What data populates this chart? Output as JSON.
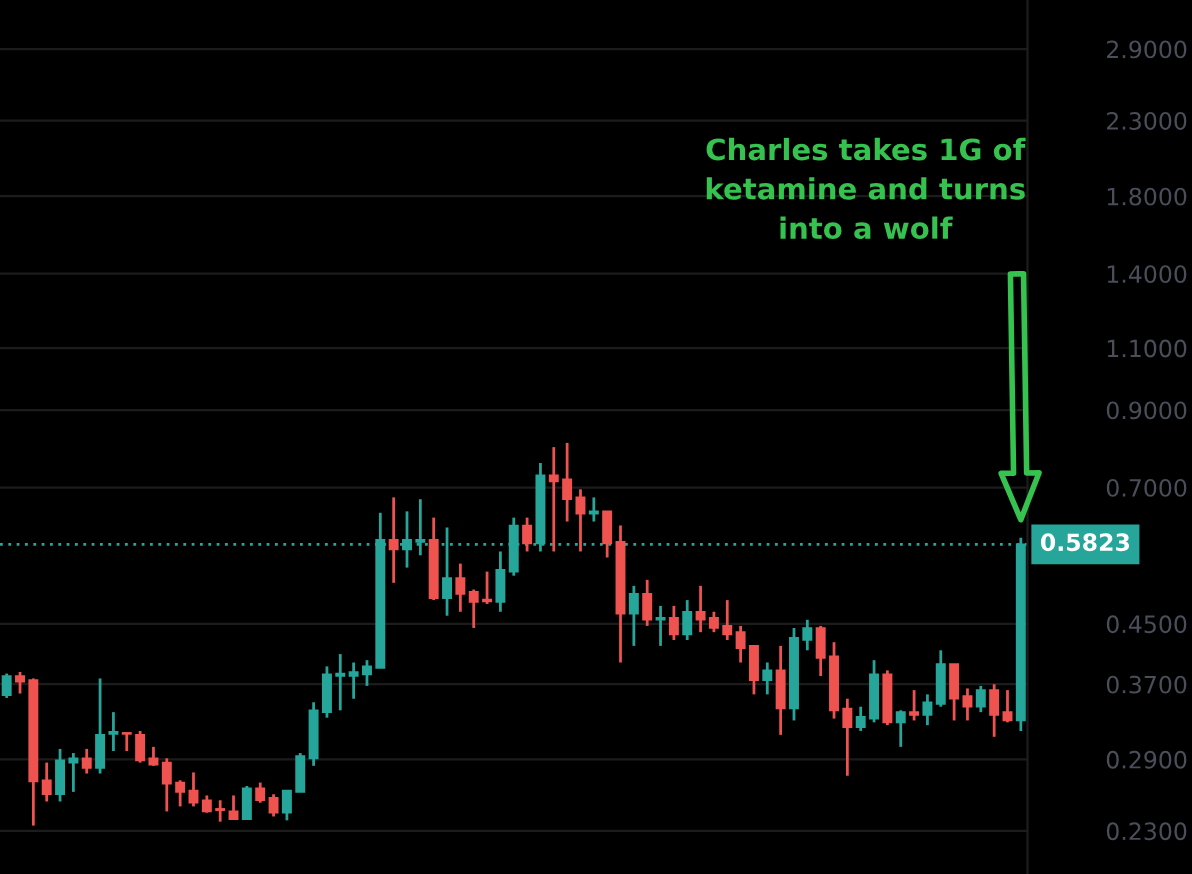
{
  "chart_data": {
    "type": "candlestick",
    "categories": [
      null,
      null,
      null,
      null,
      null,
      null,
      null,
      null,
      null,
      null,
      null,
      null,
      null,
      null,
      null,
      null,
      null,
      null,
      null,
      null,
      null,
      null,
      null,
      null,
      null,
      null,
      null,
      null,
      null,
      null,
      null,
      null,
      null,
      null,
      null,
      null,
      null,
      null,
      null,
      null,
      null,
      null,
      null,
      null,
      null,
      null,
      null,
      null,
      null,
      null,
      null,
      null,
      null,
      null,
      null,
      null,
      null,
      null,
      null,
      null,
      null,
      null,
      null,
      null,
      null,
      null,
      null,
      null,
      null,
      null,
      null,
      null,
      null,
      null,
      null,
      null,
      null
    ],
    "ohlc": [
      [
        0.357,
        0.383,
        0.354,
        0.38
      ],
      [
        0.38,
        0.385,
        0.359,
        0.373
      ],
      [
        0.375,
        0.377,
        0.234,
        0.27
      ],
      [
        0.271,
        0.287,
        0.253,
        0.259
      ],
      [
        0.259,
        0.3,
        0.253,
        0.289
      ],
      [
        0.287,
        0.296,
        0.261,
        0.291
      ],
      [
        0.291,
        0.3,
        0.277,
        0.282
      ],
      [
        0.282,
        0.377,
        0.277,
        0.314
      ],
      [
        0.315,
        0.338,
        0.298,
        0.317
      ],
      [
        0.316,
        0.316,
        0.298,
        0.315
      ],
      [
        0.314,
        0.318,
        0.287,
        0.289
      ],
      [
        0.291,
        0.302,
        0.284,
        0.285
      ],
      [
        0.287,
        0.291,
        0.245,
        0.268
      ],
      [
        0.269,
        0.271,
        0.249,
        0.261
      ],
      [
        0.262,
        0.278,
        0.249,
        0.252
      ],
      [
        0.254,
        0.258,
        0.244,
        0.245
      ],
      [
        0.247,
        0.254,
        0.237,
        0.246
      ],
      [
        0.245,
        0.258,
        0.239,
        0.239
      ],
      [
        0.239,
        0.266,
        0.239,
        0.264
      ],
      [
        0.264,
        0.269,
        0.252,
        0.254
      ],
      [
        0.256,
        0.259,
        0.241,
        0.244
      ],
      [
        0.244,
        0.262,
        0.238,
        0.262
      ],
      [
        0.261,
        0.296,
        0.261,
        0.293
      ],
      [
        0.291,
        0.349,
        0.284,
        0.34
      ],
      [
        0.338,
        0.392,
        0.332,
        0.382
      ],
      [
        0.38,
        0.408,
        0.34,
        0.383
      ],
      [
        0.38,
        0.397,
        0.353,
        0.385
      ],
      [
        0.382,
        0.4,
        0.368,
        0.392
      ],
      [
        0.39,
        0.645,
        0.39,
        0.591
      ],
      [
        0.591,
        0.678,
        0.514,
        0.573
      ],
      [
        0.573,
        0.648,
        0.54,
        0.591
      ],
      [
        0.587,
        0.674,
        0.562,
        0.591
      ],
      [
        0.591,
        0.635,
        0.486,
        0.489
      ],
      [
        0.489,
        0.615,
        0.462,
        0.522
      ],
      [
        0.522,
        0.547,
        0.468,
        0.496
      ],
      [
        0.499,
        0.503,
        0.444,
        0.483
      ],
      [
        0.487,
        0.533,
        0.48,
        0.484
      ],
      [
        0.483,
        0.569,
        0.468,
        0.536
      ],
      [
        0.533,
        0.635,
        0.526,
        0.619
      ],
      [
        0.619,
        0.635,
        0.569,
        0.584
      ],
      [
        0.584,
        0.758,
        0.569,
        0.728
      ],
      [
        0.728,
        0.798,
        0.569,
        0.714
      ],
      [
        0.719,
        0.809,
        0.627,
        0.674
      ],
      [
        0.678,
        0.696,
        0.569,
        0.643
      ],
      [
        0.643,
        0.678,
        0.627,
        0.648
      ],
      [
        0.648,
        0.648,
        0.558,
        0.584
      ],
      [
        0.587,
        0.619,
        0.397,
        0.465
      ],
      [
        0.465,
        0.509,
        0.419,
        0.496
      ],
      [
        0.496,
        0.519,
        0.447,
        0.456
      ],
      [
        0.456,
        0.477,
        0.419,
        0.459
      ],
      [
        0.459,
        0.477,
        0.427,
        0.435
      ],
      [
        0.435,
        0.486,
        0.427,
        0.468
      ],
      [
        0.468,
        0.509,
        0.438,
        0.456
      ],
      [
        0.459,
        0.468,
        0.438,
        0.444
      ],
      [
        0.447,
        0.486,
        0.427,
        0.435
      ],
      [
        0.438,
        0.447,
        0.397,
        0.416
      ],
      [
        0.419,
        0.419,
        0.358,
        0.375
      ],
      [
        0.375,
        0.397,
        0.358,
        0.387
      ],
      [
        0.387,
        0.419,
        0.314,
        0.342
      ],
      [
        0.342,
        0.444,
        0.329,
        0.43
      ],
      [
        0.427,
        0.456,
        0.413,
        0.444
      ],
      [
        0.444,
        0.447,
        0.38,
        0.403
      ],
      [
        0.405,
        0.424,
        0.331,
        0.34
      ],
      [
        0.342,
        0.353,
        0.275,
        0.322
      ],
      [
        0.322,
        0.344,
        0.318,
        0.333
      ],
      [
        0.331,
        0.4,
        0.327,
        0.382
      ],
      [
        0.382,
        0.387,
        0.324,
        0.327
      ],
      [
        0.327,
        0.34,
        0.302,
        0.338
      ],
      [
        0.338,
        0.363,
        0.329,
        0.335
      ],
      [
        0.335,
        0.358,
        0.324,
        0.349
      ],
      [
        0.347,
        0.413,
        0.344,
        0.395
      ],
      [
        0.395,
        0.395,
        0.329,
        0.353
      ],
      [
        0.356,
        0.365,
        0.329,
        0.344
      ],
      [
        0.344,
        0.368,
        0.338,
        0.363
      ],
      [
        0.363,
        0.37,
        0.312,
        0.335
      ],
      [
        0.338,
        0.363,
        0.327,
        0.329
      ],
      [
        0.329,
        0.595,
        0.318,
        0.5823
      ]
    ],
    "colors": [
      "#26a69a",
      "#ef5350",
      "#ef5350",
      "#ef5350",
      "#26a69a",
      "#26a69a",
      "#ef5350",
      "#26a69a",
      "#26a69a",
      "#ef5350",
      "#ef5350",
      "#ef5350",
      "#ef5350",
      "#ef5350",
      "#ef5350",
      "#ef5350",
      "#ef5350",
      "#ef5350",
      "#26a69a",
      "#ef5350",
      "#ef5350",
      "#26a69a",
      "#26a69a",
      "#26a69a",
      "#26a69a",
      "#26a69a",
      "#26a69a",
      "#26a69a",
      "#26a69a",
      "#ef5350",
      "#26a69a",
      "#26a69a",
      "#ef5350",
      "#26a69a",
      "#ef5350",
      "#ef5350",
      "#ef5350",
      "#26a69a",
      "#26a69a",
      "#ef5350",
      "#26a69a",
      "#ef5350",
      "#ef5350",
      "#ef5350",
      "#26a69a",
      "#ef5350",
      "#ef5350",
      "#26a69a",
      "#ef5350",
      "#26a69a",
      "#ef5350",
      "#26a69a",
      "#ef5350",
      "#ef5350",
      "#ef5350",
      "#ef5350",
      "#ef5350",
      "#26a69a",
      "#ef5350",
      "#26a69a",
      "#26a69a",
      "#ef5350",
      "#ef5350",
      "#ef5350",
      "#26a69a",
      "#26a69a",
      "#ef5350",
      "#26a69a",
      "#ef5350",
      "#26a69a",
      "#26a69a",
      "#ef5350",
      "#ef5350",
      "#26a69a",
      "#ef5350",
      "#ef5350",
      "#26a69a"
    ],
    "log": true,
    "ylim": [
      0.2,
      3.4
    ],
    "yticks": [
      {
        "value": 0.23,
        "label": "0.2300"
      },
      {
        "value": 0.29,
        "label": "0.2900"
      },
      {
        "value": 0.37,
        "label": "0.3700"
      },
      {
        "value": 0.45,
        "label": "0.4500"
      },
      {
        "value": 0.7,
        "label": "0.7000"
      },
      {
        "value": 0.9,
        "label": "0.9000"
      },
      {
        "value": 1.1,
        "label": "1.1000"
      },
      {
        "value": 1.4,
        "label": "1.4000"
      },
      {
        "value": 1.8,
        "label": "1.8000"
      },
      {
        "value": 2.3,
        "label": "2.3000"
      },
      {
        "value": 2.9,
        "label": "2.9000"
      }
    ],
    "grid": "y",
    "tick_labels": "y",
    "ref_lines": [
      {
        "axis": "y",
        "value": 0.5823,
        "label": "0.5823",
        "color": "#26a69a",
        "line_style": "dotted"
      }
    ],
    "annotations": [
      "Charles takes 1G of\nketamine and turns\ninto a wolf"
    ]
  }
}
